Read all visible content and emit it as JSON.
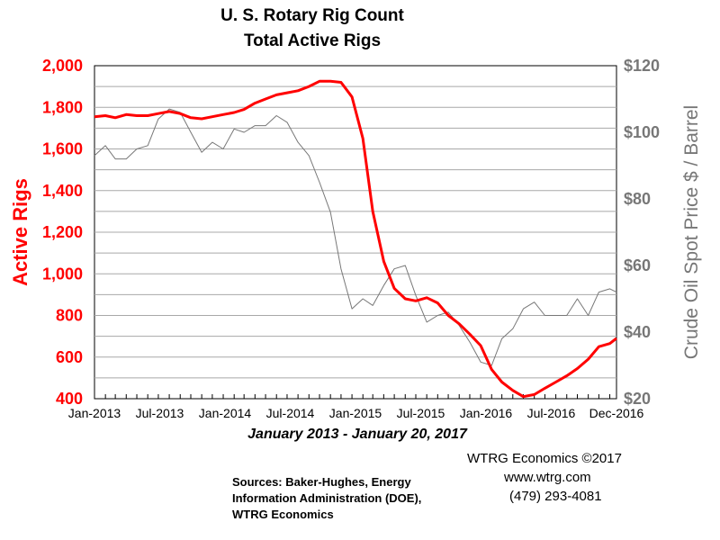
{
  "chart_data": {
    "type": "line",
    "title": "U. S. Rotary Rig Count",
    "subtitle": "Total Active Rigs",
    "xlabel": "January 2013 - January 20, 2017",
    "ylabel_left": "Active Rigs",
    "ylabel_right": "Crude Oil Spot Price $ / Barrel",
    "ylim_left": [
      400,
      2000
    ],
    "ylim_right": [
      20,
      120
    ],
    "y_ticks_left": [
      "2,000",
      "1,800",
      "1,600",
      "1,400",
      "1,200",
      "1,000",
      "800",
      "600",
      "400"
    ],
    "y_ticks_right": [
      "$120",
      "$100",
      "$80",
      "$60",
      "$40",
      "$20"
    ],
    "x_ticks": [
      "Jan-2013",
      "Jul-2013",
      "Jan-2014",
      "Jul-2014",
      "Jan-2015",
      "Jul-2015",
      "Jan-2016",
      "Jul-2016",
      "Dec-2016"
    ],
    "xlim": [
      "2013-01-01",
      "2017-01-20"
    ],
    "grid": true,
    "legend": "none",
    "colors": {
      "rigs": "#ff0000",
      "oil": "#777777"
    },
    "series": [
      {
        "axis": "left",
        "points": [
          [
            "2013-01-01",
            1755
          ],
          [
            "2013-02-01",
            1760
          ],
          [
            "2013-03-01",
            1750
          ],
          [
            "2013-04-01",
            1765
          ],
          [
            "2013-05-01",
            1760
          ],
          [
            "2013-06-01",
            1760
          ],
          [
            "2013-07-01",
            1770
          ],
          [
            "2013-08-01",
            1780
          ],
          [
            "2013-09-01",
            1770
          ],
          [
            "2013-10-01",
            1750
          ],
          [
            "2013-11-01",
            1745
          ],
          [
            "2013-12-01",
            1755
          ],
          [
            "2014-01-01",
            1765
          ],
          [
            "2014-02-01",
            1775
          ],
          [
            "2014-03-01",
            1790
          ],
          [
            "2014-04-01",
            1820
          ],
          [
            "2014-05-01",
            1840
          ],
          [
            "2014-06-01",
            1860
          ],
          [
            "2014-07-01",
            1870
          ],
          [
            "2014-08-01",
            1880
          ],
          [
            "2014-09-01",
            1900
          ],
          [
            "2014-10-01",
            1925
          ],
          [
            "2014-11-01",
            1925
          ],
          [
            "2014-12-01",
            1920
          ],
          [
            "2015-01-01",
            1850
          ],
          [
            "2015-02-01",
            1650
          ],
          [
            "2015-03-01",
            1300
          ],
          [
            "2015-04-01",
            1060
          ],
          [
            "2015-05-01",
            930
          ],
          [
            "2015-06-01",
            880
          ],
          [
            "2015-07-01",
            870
          ],
          [
            "2015-08-01",
            885
          ],
          [
            "2015-09-01",
            860
          ],
          [
            "2015-10-01",
            800
          ],
          [
            "2015-11-01",
            760
          ],
          [
            "2015-12-01",
            710
          ],
          [
            "2016-01-01",
            655
          ],
          [
            "2016-02-01",
            540
          ],
          [
            "2016-03-01",
            480
          ],
          [
            "2016-04-01",
            440
          ],
          [
            "2016-05-01",
            410
          ],
          [
            "2016-06-01",
            420
          ],
          [
            "2016-07-01",
            450
          ],
          [
            "2016-08-01",
            480
          ],
          [
            "2016-09-01",
            510
          ],
          [
            "2016-10-01",
            545
          ],
          [
            "2016-11-01",
            590
          ],
          [
            "2016-12-01",
            650
          ],
          [
            "2017-01-01",
            665
          ],
          [
            "2017-01-20",
            690
          ]
        ]
      },
      {
        "axis": "right",
        "points": [
          [
            "2013-01-01",
            93
          ],
          [
            "2013-02-01",
            96
          ],
          [
            "2013-03-01",
            92
          ],
          [
            "2013-04-01",
            92
          ],
          [
            "2013-05-01",
            95
          ],
          [
            "2013-06-01",
            96
          ],
          [
            "2013-07-01",
            104
          ],
          [
            "2013-08-01",
            107
          ],
          [
            "2013-09-01",
            106
          ],
          [
            "2013-10-01",
            100
          ],
          [
            "2013-11-01",
            94
          ],
          [
            "2013-12-01",
            97
          ],
          [
            "2014-01-01",
            95
          ],
          [
            "2014-02-01",
            101
          ],
          [
            "2014-03-01",
            100
          ],
          [
            "2014-04-01",
            102
          ],
          [
            "2014-05-01",
            102
          ],
          [
            "2014-06-01",
            105
          ],
          [
            "2014-07-01",
            103
          ],
          [
            "2014-08-01",
            97
          ],
          [
            "2014-09-01",
            93
          ],
          [
            "2014-10-01",
            85
          ],
          [
            "2014-11-01",
            76
          ],
          [
            "2014-12-01",
            59
          ],
          [
            "2015-01-01",
            47
          ],
          [
            "2015-02-01",
            50
          ],
          [
            "2015-03-01",
            48
          ],
          [
            "2015-04-01",
            54
          ],
          [
            "2015-05-01",
            59
          ],
          [
            "2015-06-01",
            60
          ],
          [
            "2015-07-01",
            51
          ],
          [
            "2015-08-01",
            43
          ],
          [
            "2015-09-01",
            45
          ],
          [
            "2015-10-01",
            46
          ],
          [
            "2015-11-01",
            42
          ],
          [
            "2015-12-01",
            37
          ],
          [
            "2016-01-01",
            31
          ],
          [
            "2016-02-01",
            30
          ],
          [
            "2016-03-01",
            38
          ],
          [
            "2016-04-01",
            41
          ],
          [
            "2016-05-01",
            47
          ],
          [
            "2016-06-01",
            49
          ],
          [
            "2016-07-01",
            45
          ],
          [
            "2016-08-01",
            45
          ],
          [
            "2016-09-01",
            45
          ],
          [
            "2016-10-01",
            50
          ],
          [
            "2016-11-01",
            45
          ],
          [
            "2016-12-01",
            52
          ],
          [
            "2017-01-01",
            53
          ],
          [
            "2017-01-20",
            52
          ]
        ]
      }
    ]
  },
  "footer": {
    "credit_line1": "WTRG Economics  ©2017",
    "credit_line2": "www.wtrg.com",
    "credit_line3": "(479) 293-4081",
    "sources_line1": "Sources: Baker-Hughes, Energy",
    "sources_line2": "Information Administration (DOE),",
    "sources_line3": "WTRG Economics"
  }
}
